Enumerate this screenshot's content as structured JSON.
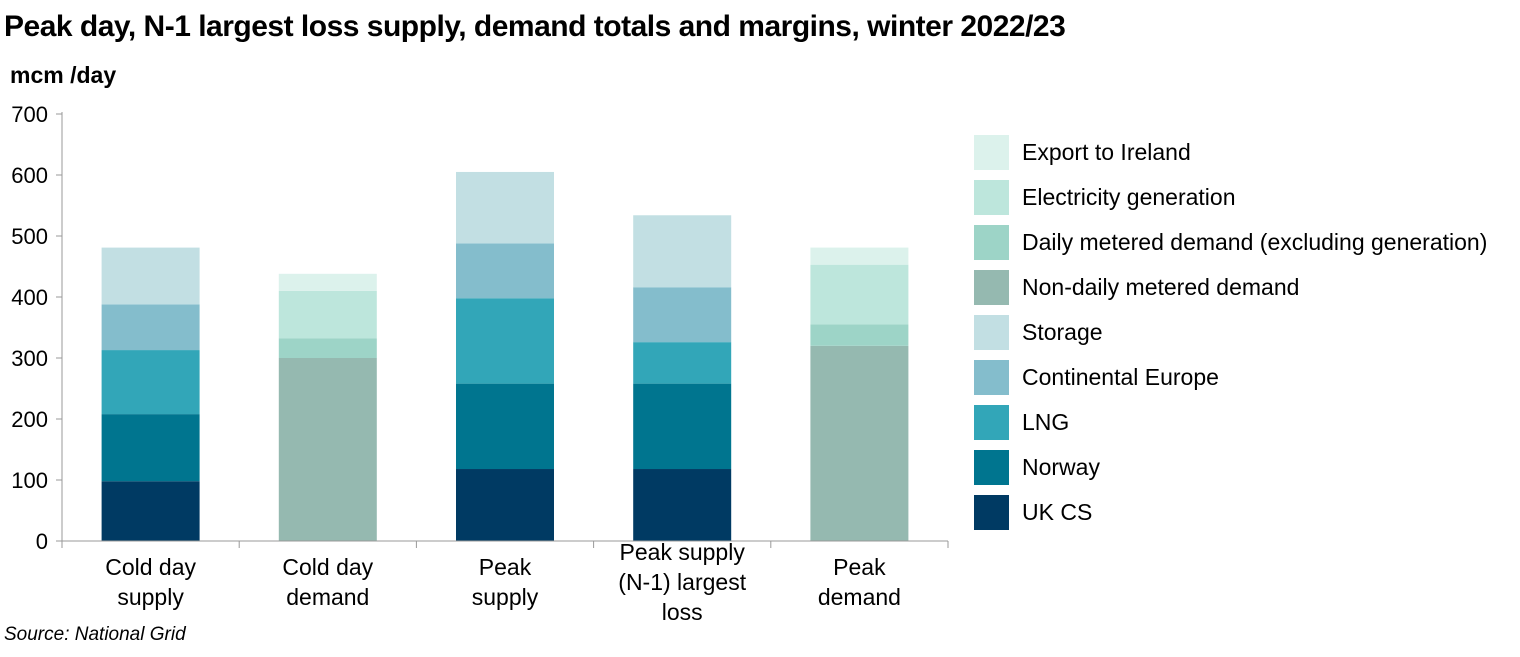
{
  "chart_data": {
    "type": "bar",
    "stacked": true,
    "title": "Peak day, N-1 largest loss supply, demand totals and margins, winter 2022/23",
    "ylabel": "mcm /day",
    "xlabel": "",
    "ylim": [
      0,
      700
    ],
    "yticks": [
      0,
      100,
      200,
      300,
      400,
      500,
      600,
      700
    ],
    "grid": false,
    "legend_position": "right",
    "source": "Source: National Grid",
    "categories": [
      [
        "Cold day",
        "supply"
      ],
      [
        "Cold day",
        "demand"
      ],
      [
        "Peak",
        "supply"
      ],
      [
        "Peak supply",
        "(N-1) largest",
        "loss"
      ],
      [
        "Peak",
        "demand"
      ]
    ],
    "series": [
      {
        "name": "UK CS",
        "color": "#003a63",
        "values": [
          98,
          0,
          118,
          118,
          0
        ]
      },
      {
        "name": "Norway",
        "color": "#00758f",
        "values": [
          110,
          0,
          140,
          140,
          0
        ]
      },
      {
        "name": "LNG",
        "color": "#32a6b8",
        "values": [
          105,
          0,
          140,
          68,
          0
        ]
      },
      {
        "name": "Continental Europe",
        "color": "#84bdcc",
        "values": [
          75,
          0,
          90,
          90,
          0
        ]
      },
      {
        "name": "Storage",
        "color": "#c2dfe3",
        "values": [
          93,
          0,
          117,
          118,
          0
        ]
      },
      {
        "name": "Non-daily metered demand",
        "color": "#95b9b0",
        "values": [
          0,
          300,
          0,
          0,
          320
        ]
      },
      {
        "name": "Daily metered demand (excluding generation)",
        "color": "#9dd4c7",
        "values": [
          0,
          32,
          0,
          0,
          35
        ]
      },
      {
        "name": "Electricity generation",
        "color": "#bde6dc",
        "values": [
          0,
          78,
          0,
          0,
          98
        ]
      },
      {
        "name": "Export to Ireland",
        "color": "#dcf2ec",
        "values": [
          0,
          28,
          0,
          0,
          28
        ]
      }
    ]
  }
}
